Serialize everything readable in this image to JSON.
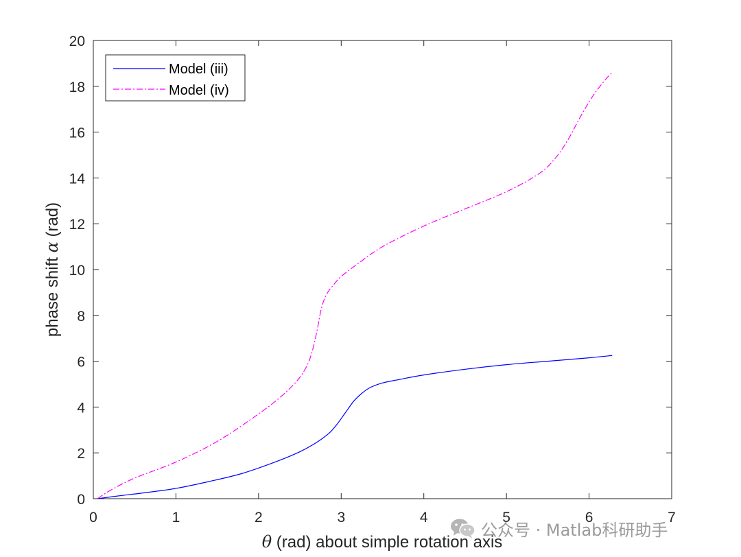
{
  "chart_data": {
    "type": "line",
    "xlabel_symbol": "θ",
    "xlabel_rest": " (rad) about simple rotation axis",
    "ylabel_text": "phase shift ",
    "ylabel_symbol": "α",
    "ylabel_unit": " (rad)",
    "xlim": [
      0,
      7
    ],
    "ylim": [
      0,
      20
    ],
    "xticks": [
      0,
      1,
      2,
      3,
      4,
      5,
      6,
      7
    ],
    "yticks": [
      0,
      2,
      4,
      6,
      8,
      10,
      12,
      14,
      16,
      18,
      20
    ],
    "grid": false,
    "legend_position": "top-left",
    "series": [
      {
        "name": "Model (iii)",
        "color": "#0000ff",
        "line_style": "solid",
        "x": [
          0.05,
          0.3,
          0.6,
          1.0,
          1.4,
          1.8,
          2.2,
          2.5,
          2.7,
          2.85,
          2.95,
          3.05,
          3.15,
          3.25,
          3.35,
          3.5,
          3.7,
          4.0,
          4.5,
          5.0,
          5.5,
          6.0,
          6.28
        ],
        "y": [
          0.0,
          0.12,
          0.25,
          0.45,
          0.75,
          1.1,
          1.6,
          2.05,
          2.45,
          2.85,
          3.25,
          3.75,
          4.25,
          4.6,
          4.85,
          5.05,
          5.2,
          5.4,
          5.65,
          5.85,
          6.0,
          6.15,
          6.25
        ]
      },
      {
        "name": "Model (iv)",
        "color": "#ff00ff",
        "line_style": "dash-dot",
        "x": [
          0.05,
          0.2,
          0.5,
          1.0,
          1.5,
          2.0,
          2.3,
          2.5,
          2.62,
          2.7,
          2.76,
          2.82,
          2.9,
          3.0,
          3.2,
          3.5,
          4.0,
          4.5,
          5.0,
          5.4,
          5.6,
          5.75,
          5.9,
          6.05,
          6.2,
          6.28
        ],
        "y": [
          0.0,
          0.35,
          0.9,
          1.6,
          2.5,
          3.7,
          4.55,
          5.3,
          6.1,
          7.2,
          8.3,
          8.9,
          9.3,
          9.7,
          10.25,
          11.0,
          11.9,
          12.65,
          13.4,
          14.2,
          14.9,
          15.7,
          16.7,
          17.6,
          18.3,
          18.6
        ]
      }
    ]
  },
  "watermark": {
    "text": "公众号 · Matlab科研助手",
    "icon": "wechat-icon"
  }
}
